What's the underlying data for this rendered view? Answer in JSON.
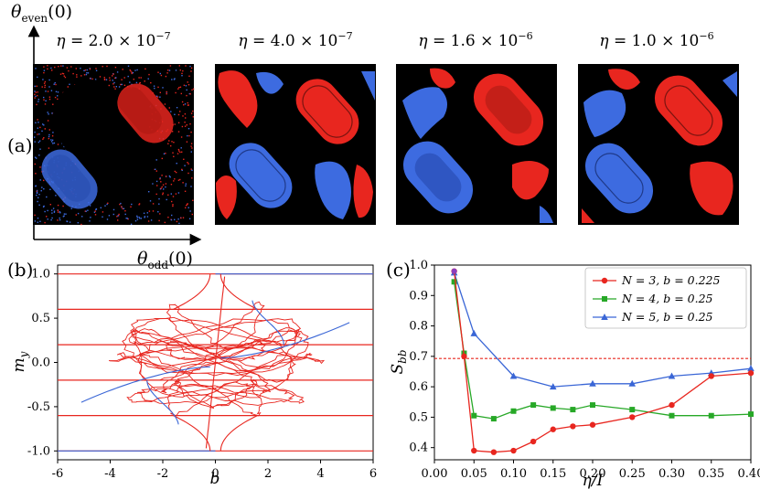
{
  "figure": {
    "panel_a_label": "(a)",
    "panel_b_label": "(b)",
    "panel_c_label": "(c)"
  },
  "panel_a": {
    "y_axis_label_base": "θ",
    "y_axis_label_sub": "even",
    "y_axis_label_arg": "(0)",
    "x_axis_label_base": "θ",
    "x_axis_label_sub": "odd",
    "x_axis_label_arg": "(0)",
    "eta_symbol": "η",
    "maps": [
      {
        "label_prefix": "η = ",
        "label_value": "2.0 × 10",
        "label_exp": "−7"
      },
      {
        "label_prefix": "η = ",
        "label_value": "4.0 × 10",
        "label_exp": "−7"
      },
      {
        "label_prefix": "η = ",
        "label_value": "1.6 × 10",
        "label_exp": "−6"
      },
      {
        "label_prefix": "η = ",
        "label_value": "1.0 × 10",
        "label_exp": "−6"
      }
    ],
    "colors": {
      "background": "#000000",
      "red": "#e8261f",
      "blue": "#3d6be0"
    }
  },
  "chart_data": [
    {
      "type": "line",
      "panel": "b",
      "xlabel": "b",
      "ylabel": "m_y",
      "xlim": [
        -6,
        6
      ],
      "ylim": [
        -1.1,
        1.1
      ],
      "x_ticks": [
        "-6",
        "-4",
        "-2",
        "0",
        "2",
        "4",
        "6"
      ],
      "y_ticks": [
        "1.0",
        "0.5",
        "0.0",
        "-0.5",
        "-1.0"
      ],
      "x_tick_values": [
        -6,
        -4,
        -2,
        0,
        2,
        4,
        6
      ],
      "y_tick_values": [
        1.0,
        0.5,
        0.0,
        -0.5,
        -1.0
      ],
      "horizontal_levels": [
        1.0,
        0.6,
        0.2,
        -0.2,
        -0.6,
        -1.0
      ],
      "blue_levels": [
        1.0,
        -1.0
      ],
      "colors": {
        "red": "#e8261f",
        "blue": "#3a66d6"
      }
    },
    {
      "type": "line",
      "panel": "c",
      "xlabel": "η/I",
      "ylabel": "S_bb",
      "xlim": [
        0.0,
        0.4
      ],
      "ylim": [
        0.36,
        1.0
      ],
      "x_ticks": [
        "0.00",
        "0.05",
        "0.10",
        "0.15",
        "0.20",
        "0.25",
        "0.30",
        "0.35",
        "0.40"
      ],
      "y_ticks": [
        "1.0",
        "0.9",
        "0.8",
        "0.7",
        "0.6",
        "0.5",
        "0.4"
      ],
      "x_tick_values": [
        0.0,
        0.05,
        0.1,
        0.15,
        0.2,
        0.25,
        0.3,
        0.35,
        0.4
      ],
      "y_tick_values": [
        1.0,
        0.9,
        0.8,
        0.7,
        0.6,
        0.5,
        0.4
      ],
      "reference_line": {
        "y": 0.693,
        "style": "dashed",
        "color": "#e8261f"
      },
      "legend_position": "top-right",
      "series": [
        {
          "name": "N = 3, b = 0.225",
          "color": "#e8261f",
          "marker": "circle",
          "x": [
            0.025,
            0.0375,
            0.05,
            0.075,
            0.1,
            0.125,
            0.15,
            0.175,
            0.2,
            0.25,
            0.3,
            0.35,
            0.4
          ],
          "y": [
            0.98,
            0.7,
            0.39,
            0.385,
            0.39,
            0.42,
            0.46,
            0.47,
            0.475,
            0.5,
            0.54,
            0.635,
            0.645
          ]
        },
        {
          "name": "N = 4, b = 0.25",
          "color": "#27a827",
          "marker": "square",
          "x": [
            0.025,
            0.0375,
            0.05,
            0.075,
            0.1,
            0.125,
            0.15,
            0.175,
            0.2,
            0.25,
            0.3,
            0.35,
            0.4
          ],
          "y": [
            0.945,
            0.71,
            0.505,
            0.495,
            0.52,
            0.54,
            0.53,
            0.525,
            0.54,
            0.525,
            0.505,
            0.505,
            0.51
          ]
        },
        {
          "name": "N = 5, b = 0.25",
          "color": "#3a66d6",
          "marker": "triangle",
          "x": [
            0.025,
            0.05,
            0.1,
            0.15,
            0.2,
            0.25,
            0.3,
            0.35,
            0.4
          ],
          "y": [
            0.975,
            0.775,
            0.635,
            0.6,
            0.61,
            0.61,
            0.635,
            0.645,
            0.66
          ]
        }
      ]
    }
  ]
}
